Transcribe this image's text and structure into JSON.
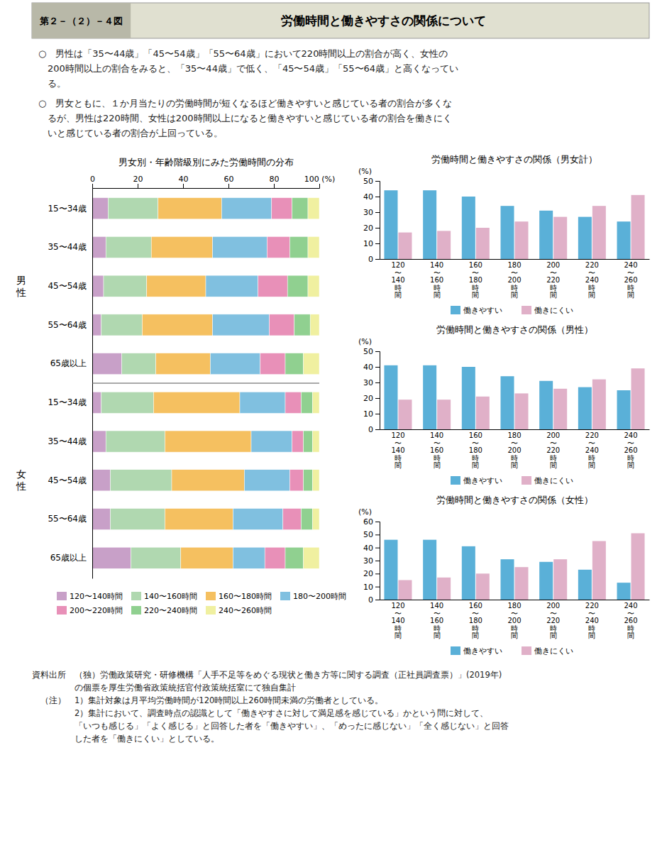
{
  "title": "労働時間と働きやすさの関係について",
  "subtitle": "第２－（２）－４図",
  "annotations": [
    "○　男性は「35〜44歳」「45〜54歳」「55〜64歳」において220時間以上の割合が高く、女性の\n　200時間以上の割合をみると、「35〜44歳」で低く、「45〜54歳」「55〜64歳」と高くなってい\n　る。",
    "○　男女ともに、１か月当たりの労働時間が短くなるほど働きやすいと感じている者の割合が多くな\n　るが、男性は220時間、女性は200時間以上になると働きやすいと感じている者の割合を働きにく\n　いと感じている者の割合が上回っている。",
    "資料出所　（独）労働政策研究・研修機構「人手不足等をめぐる現状と働き方等に関する調査（正社員調査票）」(2019年)\n　　　　　の個票を厚生労働省政策統括官付政策統括室にて独自集計\n　（注）　1）集計対象は月平均労働時間が120時間以上260時間未満の労働者としている。\n　　　　　2）集計において、調査時点の認識として「働きやすさに対して満足感を感じている」かという問に対して、\n　　　　　「いつも感じる」「よく感じる」と回答した者を「働きやすい」、「めったに感じない」「全く感じない」と回答\n　　　　　した者を「働きにくい」としている。"
  ],
  "chart_data": [
    {
      "type": "bar",
      "orientation": "horizontal",
      "stacked": true,
      "title": "男女別・年齢階級別にみた労働時間の分布",
      "categories": [
        "15〜34歳",
        "35〜44歳",
        "45〜54歳",
        "55〜64歳",
        "65歳以上",
        "15〜34歳",
        "35〜44歳",
        "45〜54歳",
        "55〜64歳",
        "65歳以上"
      ],
      "series": [
        {
          "name": "120〜140時間",
          "color": "#c8a0c8",
          "values": [
            7,
            6,
            5,
            4,
            13,
            4,
            6,
            8,
            8,
            17
          ]
        },
        {
          "name": "140〜160時間",
          "color": "#b0d8b0",
          "values": [
            22,
            20,
            19,
            18,
            15,
            23,
            26,
            27,
            24,
            22
          ]
        },
        {
          "name": "160〜180時間",
          "color": "#f5c060",
          "values": [
            28,
            27,
            26,
            31,
            24,
            38,
            38,
            32,
            30,
            23
          ]
        },
        {
          "name": "180〜200時間",
          "color": "#80c0e0",
          "values": [
            22,
            24,
            23,
            25,
            22,
            20,
            18,
            20,
            22,
            14
          ]
        },
        {
          "name": "200〜220時間",
          "color": "#e890b8",
          "values": [
            9,
            10,
            13,
            11,
            11,
            7,
            5,
            6,
            8,
            9
          ]
        },
        {
          "name": "220〜240時間",
          "color": "#90d090",
          "values": [
            7,
            8,
            9,
            7,
            8,
            5,
            4,
            4,
            5,
            8
          ]
        },
        {
          "name": "240〜260時間",
          "color": "#f0f0a0",
          "values": [
            5,
            5,
            5,
            4,
            7,
            3,
            3,
            3,
            3,
            7
          ]
        }
      ],
      "xlim": [
        0,
        100
      ],
      "xticks": [
        0,
        20,
        40,
        60,
        80,
        {
          "value": 100,
          "label": "100 (%)"
        }
      ],
      "grid": false,
      "legend": "bottom",
      "annotations": [
        "男\n性",
        "女\n性"
      ]
    },
    {
      "type": "bar",
      "title": "労働時間と働きやすさの関係（男女計）",
      "ylabel": "(%)",
      "categories": [
        "120\n〜\n140\n時\n間",
        "140\n〜\n160\n時\n間",
        "160\n〜\n180\n時\n間",
        "180\n〜\n200\n時\n間",
        "200\n〜\n220\n時\n間",
        "220\n〜\n240\n時\n間",
        "240\n〜\n260\n時\n間"
      ],
      "series": [
        {
          "name": "働きやすい",
          "color": "#5ab0d8",
          "values": [
            44,
            44,
            40,
            34,
            31,
            27,
            24
          ]
        },
        {
          "name": "働きにくい",
          "color": "#e0b0c8",
          "values": [
            17,
            18,
            20,
            24,
            27,
            34,
            41
          ]
        }
      ],
      "ylim": [
        0,
        50
      ],
      "yticks": [
        0,
        10,
        20,
        30,
        40,
        50
      ],
      "grid": false,
      "legend": "bottom"
    },
    {
      "type": "bar",
      "title": "労働時間と働きやすさの関係（男性）",
      "ylabel": "(%)",
      "categories": [
        "120\n〜\n140\n時\n間",
        "140\n〜\n160\n時\n間",
        "160\n〜\n180\n時\n間",
        "180\n〜\n200\n時\n間",
        "200\n〜\n220\n時\n間",
        "220\n〜\n240\n時\n間",
        "240\n〜\n260\n時\n間"
      ],
      "series": [
        {
          "name": "働きやすい",
          "color": "#5ab0d8",
          "values": [
            41,
            41,
            40,
            34,
            31,
            27,
            25
          ]
        },
        {
          "name": "働きにくい",
          "color": "#e0b0c8",
          "values": [
            19,
            19,
            21,
            23,
            26,
            32,
            39
          ]
        }
      ],
      "ylim": [
        0,
        50
      ],
      "yticks": [
        0,
        10,
        20,
        30,
        40,
        50
      ],
      "grid": false,
      "legend": "bottom"
    },
    {
      "type": "bar",
      "title": "労働時間と働きやすさの関係（女性）",
      "ylabel": "(%)",
      "categories": [
        "120\n〜\n140\n時\n間",
        "140\n〜\n160\n時\n間",
        "160\n〜\n180\n時\n間",
        "180\n〜\n200\n時\n間",
        "200\n〜\n220\n時\n間",
        "220\n〜\n240\n時\n間",
        "240\n〜\n260\n時\n間"
      ],
      "series": [
        {
          "name": "働きやすい",
          "color": "#5ab0d8",
          "values": [
            46,
            46,
            41,
            31,
            29,
            23,
            13
          ]
        },
        {
          "name": "働きにくい",
          "color": "#e0b0c8",
          "values": [
            15,
            17,
            20,
            25,
            31,
            45,
            51
          ]
        }
      ],
      "ylim": [
        0,
        60
      ],
      "yticks": [
        0,
        10,
        20,
        30,
        40,
        50,
        60
      ],
      "grid": false,
      "legend": "bottom"
    }
  ]
}
